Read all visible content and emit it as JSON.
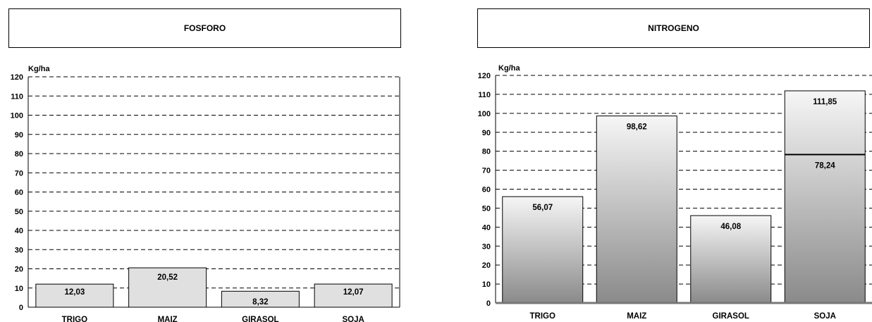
{
  "chart_data": [
    {
      "type": "bar",
      "title": "FOSFORO",
      "ylabel": "Kg/ha",
      "ylim": [
        0,
        120
      ],
      "yticks": [
        0,
        10,
        20,
        30,
        40,
        50,
        60,
        70,
        80,
        90,
        100,
        110,
        120
      ],
      "grid": true,
      "categories": [
        "TRIGO",
        "MAIZ",
        "GIRASOL",
        "SOJA"
      ],
      "values": [
        12.03,
        20.52,
        8.32,
        12.07
      ],
      "value_labels": [
        "12,03",
        "20,52",
        "8,32",
        "12,07"
      ],
      "bar_color": "#e0e0e0"
    },
    {
      "type": "bar",
      "title": "NITROGENO",
      "ylabel": "Kg/ha",
      "ylim": [
        0,
        120
      ],
      "yticks": [
        0,
        10,
        20,
        30,
        40,
        50,
        60,
        70,
        80,
        90,
        100,
        110,
        120
      ],
      "grid": true,
      "categories": [
        "TRIGO",
        "MAIZ",
        "GIRASOL",
        "SOJA"
      ],
      "values": [
        56.07,
        98.62,
        46.08,
        111.85
      ],
      "value_labels": [
        "56,07",
        "98,62",
        "46,08",
        "111,85"
      ],
      "reference_marks": [
        {
          "category": "SOJA",
          "value": 78.24,
          "label": "78,24"
        }
      ],
      "bar_gradient": [
        "#f6f6f6",
        "#8a8a8a"
      ]
    }
  ]
}
